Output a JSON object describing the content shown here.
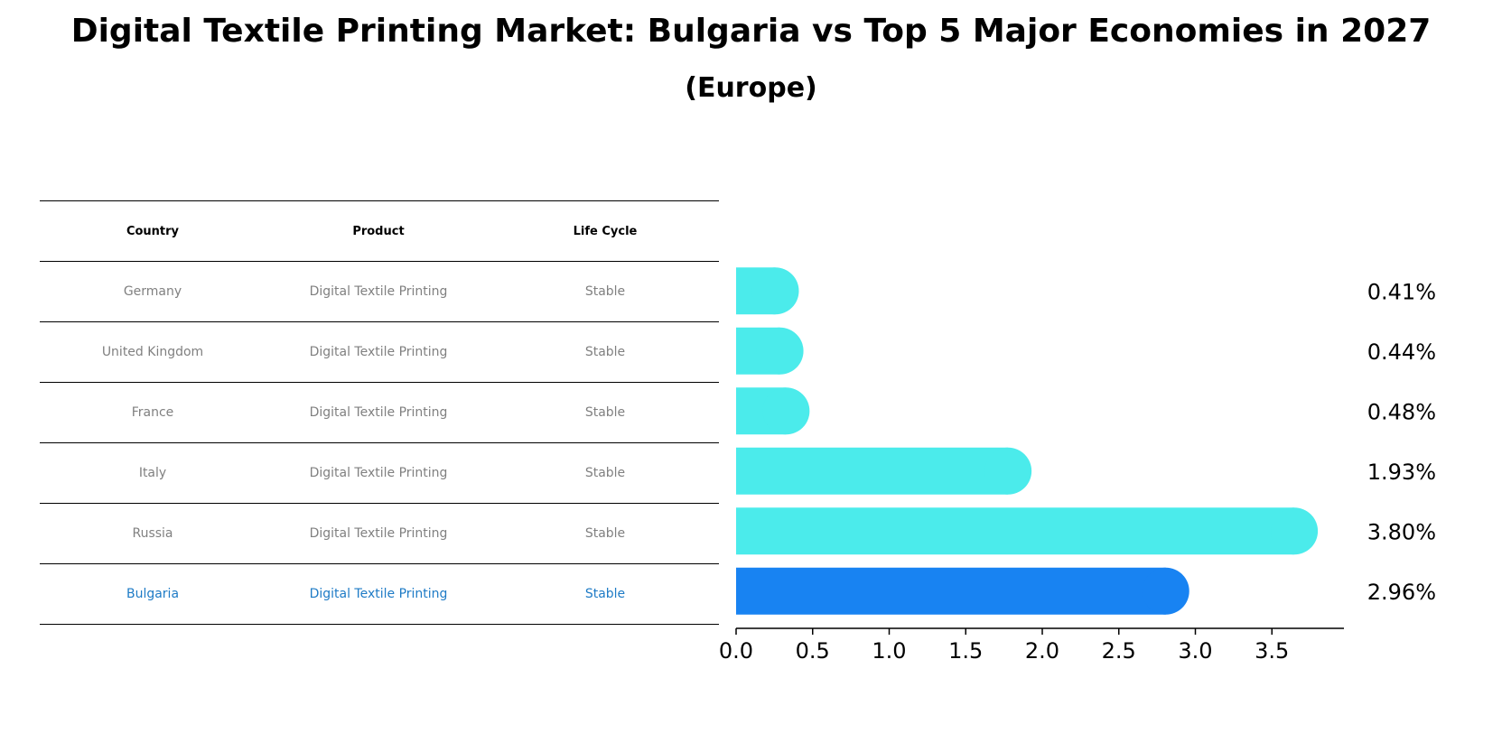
{
  "title": "Digital Textile Printing Market: Bulgaria vs Top 5 Major Economies in 2027",
  "subtitle": "(Europe)",
  "table": {
    "headers": [
      "Country",
      "Product",
      "Life Cycle"
    ],
    "rows": [
      [
        "Germany",
        "Digital Textile Printing",
        "Stable"
      ],
      [
        "United Kingdom",
        "Digital Textile Printing",
        "Stable"
      ],
      [
        "France",
        "Digital Textile Printing",
        "Stable"
      ],
      [
        "Italy",
        "Digital Textile Printing",
        "Stable"
      ],
      [
        "Russia",
        "Digital Textile Printing",
        "Stable"
      ],
      [
        "Bulgaria",
        "Digital Textile Printing",
        "Stable"
      ]
    ],
    "highlight_row": 5
  },
  "colors": {
    "bar": "#4bebeb",
    "highlight_bar": "#1883f2",
    "highlight_text": "#1e7bc6",
    "muted_text": "#808080"
  },
  "chart_data": {
    "type": "bar",
    "orientation": "horizontal",
    "categories": [
      "Germany",
      "United Kingdom",
      "France",
      "Italy",
      "Russia",
      "Bulgaria"
    ],
    "values": [
      0.41,
      0.44,
      0.48,
      1.93,
      3.8,
      2.96
    ],
    "value_labels": [
      "0.41%",
      "0.44%",
      "0.48%",
      "1.93%",
      "3.80%",
      "2.96%"
    ],
    "xticks": [
      "0.0",
      "0.5",
      "1.0",
      "1.5",
      "2.0",
      "2.5",
      "3.0",
      "3.5"
    ],
    "xlim": [
      0,
      4.0
    ],
    "highlight_category": "Bulgaria",
    "grid": false
  }
}
